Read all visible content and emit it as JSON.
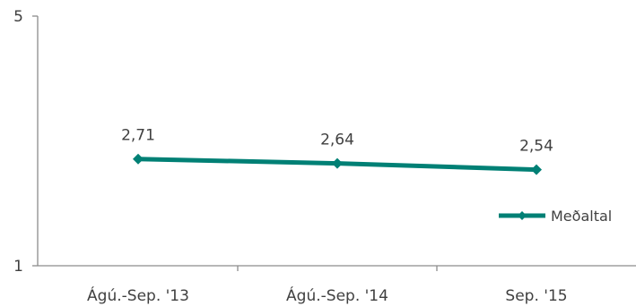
{
  "chart_data": {
    "type": "line",
    "categories": [
      "Ágú.-Sep. '13",
      "Ágú.-Sep. '14",
      "Sep. '15"
    ],
    "series": [
      {
        "name": "Meðaltal",
        "values": [
          2.71,
          2.64,
          2.54
        ],
        "color": "#008075"
      }
    ],
    "data_labels": [
      "2,71",
      "2,64",
      "2,54"
    ],
    "yticks": [
      "1",
      "5"
    ],
    "ylim": [
      1,
      5
    ],
    "grid": false,
    "legend_position": "right"
  }
}
